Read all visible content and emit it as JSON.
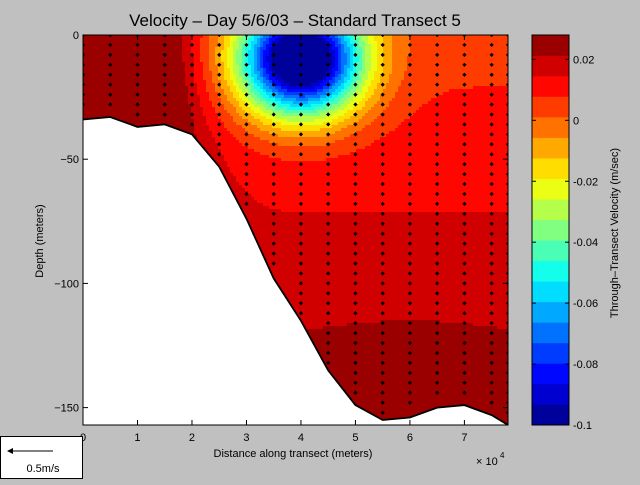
{
  "chart_data": {
    "type": "contour",
    "title": "Velocity – Day 5/6/03 – Standard Transect 5",
    "xlabel": "Distance along transect (meters)",
    "ylabel": "Depth (meters)",
    "x_multiplier_label": "× 10",
    "x_multiplier_exp": "4",
    "xlim": [
      0,
      78000
    ],
    "ylim": [
      -157,
      0
    ],
    "x_ticks": [
      0,
      1,
      2,
      3,
      4,
      5,
      6,
      7
    ],
    "x_tick_labels": [
      "0",
      "1",
      "2",
      "3",
      "4",
      "5",
      "6",
      "7"
    ],
    "y_ticks": [
      0,
      -50,
      -100,
      -150
    ],
    "y_tick_labels": [
      "0",
      "−50",
      "−100",
      "−150"
    ],
    "colorbar": {
      "label": "Through–Transect Velocity (m/sec)",
      "range": [
        -0.1,
        0.028
      ],
      "ticks": [
        0.02,
        0,
        -0.02,
        -0.04,
        -0.06,
        -0.08,
        -0.1
      ],
      "tick_labels": [
        "0.02",
        "0",
        "-0.02",
        "-0.04",
        "-0.06",
        "-0.08",
        "-0.1"
      ],
      "colormap": "jet",
      "n_levels": 19
    },
    "core_minimum": {
      "x": 40000,
      "y": -10,
      "value": -0.1
    },
    "bottom_profile": [
      [
        0,
        -34
      ],
      [
        5000,
        -33
      ],
      [
        10000,
        -37
      ],
      [
        15000,
        -36
      ],
      [
        20000,
        -40
      ],
      [
        25000,
        -53
      ],
      [
        30000,
        -74
      ],
      [
        35000,
        -98
      ],
      [
        40000,
        -115
      ],
      [
        45000,
        -135
      ],
      [
        50000,
        -149
      ],
      [
        55000,
        -155
      ],
      [
        60000,
        -154
      ],
      [
        65000,
        -150
      ],
      [
        70000,
        -149
      ],
      [
        75000,
        -153
      ],
      [
        78000,
        -157
      ]
    ],
    "station_x": [
      0,
      5000,
      10000,
      15000,
      20000,
      25000,
      30000,
      35000,
      40000,
      45000,
      50000,
      55000,
      60000,
      65000,
      70000,
      75000,
      78000
    ],
    "sample_depth_spacing": 4
  },
  "scale_arrow": {
    "label": "0.5m/s",
    "value_m_per_s": 0.5
  }
}
